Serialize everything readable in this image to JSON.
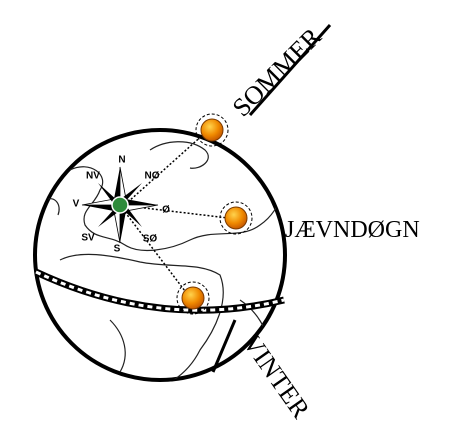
{
  "seasons": {
    "summer": "SOMMER",
    "equinox": "JÆVNDØGN",
    "winter": "VINTER"
  },
  "compass": [
    "N",
    "NØ",
    "Ø",
    "SØ",
    "S",
    "SV",
    "V",
    "NV"
  ]
}
